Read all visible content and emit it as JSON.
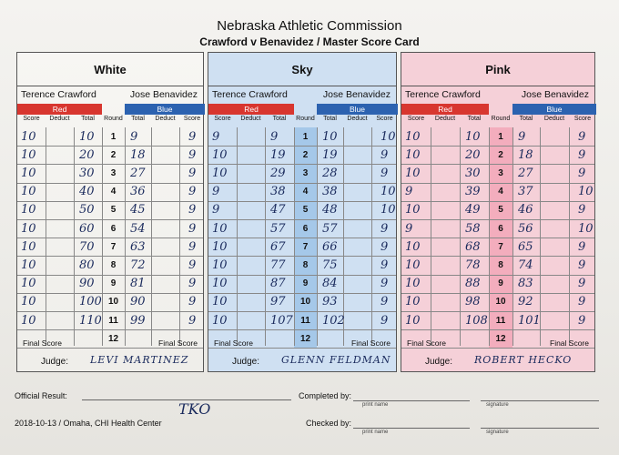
{
  "header": {
    "title": "Nebraska Athletic Commission",
    "subtitle": "Crawford v Benavidez / Master Score Card"
  },
  "labels": {
    "red": "Red",
    "blue": "Blue",
    "score": "Score",
    "deduct": "Deduct",
    "total": "Total",
    "round": "Round",
    "final_score": "Final Score",
    "judge": "Judge:"
  },
  "fighters": {
    "red": "Terence Crawford",
    "blue": "Jose Benavidez"
  },
  "rounds": [
    "1",
    "2",
    "3",
    "4",
    "5",
    "6",
    "7",
    "8",
    "9",
    "10",
    "11",
    "12"
  ],
  "panels": [
    {
      "name": "White",
      "judge": "LEVI MARTINEZ",
      "color": "#ffffff",
      "round_color": "#ffffff",
      "red_score": [
        "10",
        "10",
        "10",
        "10",
        "10",
        "10",
        "10",
        "10",
        "10",
        "10",
        "10"
      ],
      "red_total": [
        "10",
        "20",
        "30",
        "40",
        "50",
        "60",
        "70",
        "80",
        "90",
        "100",
        "110"
      ],
      "blue_total": [
        "9",
        "18",
        "27",
        "36",
        "45",
        "54",
        "63",
        "72",
        "81",
        "90",
        "99"
      ],
      "blue_score": [
        "9",
        "9",
        "9",
        "9",
        "9",
        "9",
        "9",
        "9",
        "9",
        "9",
        "9"
      ]
    },
    {
      "name": "Sky",
      "judge": "GLENN FELDMAN",
      "color": "#cfe0f2",
      "round_color": "#9dc3e8",
      "red_score": [
        "9",
        "10",
        "10",
        "9",
        "9",
        "10",
        "10",
        "10",
        "10",
        "10",
        "10"
      ],
      "red_total": [
        "9",
        "19",
        "29",
        "38",
        "47",
        "57",
        "67",
        "77",
        "87",
        "97",
        "107"
      ],
      "blue_total": [
        "10",
        "19",
        "28",
        "38",
        "48",
        "57",
        "66",
        "75",
        "84",
        "93",
        "102"
      ],
      "blue_score": [
        "10",
        "9",
        "9",
        "10",
        "10",
        "9",
        "9",
        "9",
        "9",
        "9",
        "9"
      ]
    },
    {
      "name": "Pink",
      "judge": "ROBERT HECKO",
      "color": "#f5d0d8",
      "round_color": "#f2a7b8",
      "red_score": [
        "10",
        "10",
        "10",
        "9",
        "10",
        "9",
        "10",
        "10",
        "10",
        "10",
        "10"
      ],
      "red_total": [
        "10",
        "20",
        "30",
        "39",
        "49",
        "58",
        "68",
        "78",
        "88",
        "98",
        "108"
      ],
      "blue_total": [
        "9",
        "18",
        "27",
        "37",
        "46",
        "56",
        "65",
        "74",
        "83",
        "92",
        "101"
      ],
      "blue_score": [
        "9",
        "9",
        "9",
        "10",
        "9",
        "10",
        "9",
        "9",
        "9",
        "9",
        "9"
      ]
    }
  ],
  "footer": {
    "official_result": "Official Result:",
    "result_value": "TKO",
    "date_location": "2018-10-13 / Omaha, CHI Health Center",
    "completed_by": "Completed by:",
    "checked_by": "Checked by:",
    "print_name": "print name",
    "signature": "signature"
  }
}
